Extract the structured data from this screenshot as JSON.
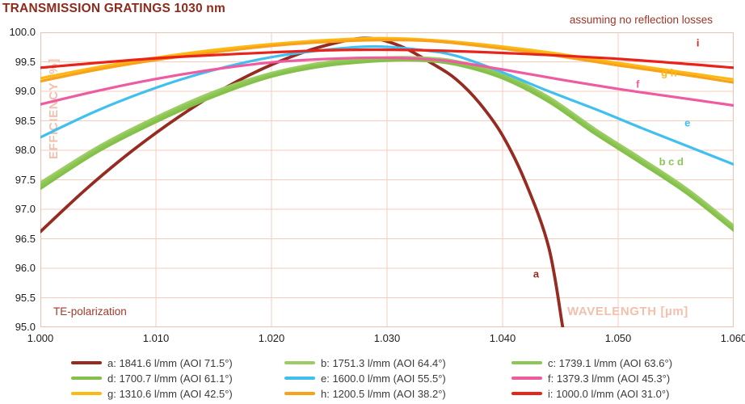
{
  "header": {
    "title": "TRANSMISSION GRATINGS 1030 nm"
  },
  "notes": {
    "top_right": "assuming no reflection losses",
    "bottom_left": "TE-polarization"
  },
  "colors": {
    "grid": "#f4cdbd",
    "plot_border": "#eec0ae",
    "tick_text": "#1d1d1b",
    "axis_label": "#f2c0ac",
    "title": "#8e2a1c",
    "note": "#9c3527",
    "legend_text": "#3a3a38"
  },
  "chart_data": {
    "type": "line",
    "title": "TRANSMISSION GRATINGS 1030 nm",
    "xlabel": "WAVELENGTH [µm]",
    "ylabel": "EFFICIENCY [%]",
    "xlim": [
      1.0,
      1.06
    ],
    "ylim": [
      95.0,
      100.0
    ],
    "x_tick_labels": [
      "1.000",
      "1.010",
      "1.020",
      "1.030",
      "1.040",
      "1.050",
      "1.060"
    ],
    "y_tick_labels": [
      "100.0",
      "99.5",
      "99.0",
      "98.5",
      "98.0",
      "97.5",
      "97.0",
      "96.5",
      "96.0",
      "95.5",
      "95.0"
    ],
    "x_grid_step": 0.01,
    "y_grid_step": 0.5,
    "grid": true,
    "legend_position": "bottom",
    "series": [
      {
        "id": "a",
        "label": "a: 1841.6 l/mm (AOI 71.5°)",
        "color": "#952b21",
        "width": 3.8,
        "points": [
          [
            1.0,
            96.62
          ],
          [
            1.004,
            97.35
          ],
          [
            1.008,
            98.0
          ],
          [
            1.012,
            98.57
          ],
          [
            1.016,
            99.06
          ],
          [
            1.02,
            99.45
          ],
          [
            1.024,
            99.74
          ],
          [
            1.028,
            99.9
          ],
          [
            1.031,
            99.78
          ],
          [
            1.034,
            99.46
          ],
          [
            1.036,
            99.2
          ],
          [
            1.038,
            98.8
          ],
          [
            1.04,
            98.25
          ],
          [
            1.042,
            97.45
          ],
          [
            1.044,
            96.35
          ],
          [
            1.0452,
            95.0
          ]
        ]
      },
      {
        "id": "b",
        "label": "b: 1751.3 l/mm (AOI 64.4°)",
        "color": "#9bcd64",
        "width": 3.2,
        "points": [
          [
            1.0,
            97.45
          ],
          [
            1.005,
            98.06
          ],
          [
            1.01,
            98.56
          ],
          [
            1.015,
            98.99
          ],
          [
            1.02,
            99.31
          ],
          [
            1.025,
            99.5
          ],
          [
            1.03,
            99.57
          ],
          [
            1.033,
            99.57
          ],
          [
            1.036,
            99.51
          ],
          [
            1.04,
            99.29
          ],
          [
            1.044,
            98.9
          ],
          [
            1.048,
            98.36
          ],
          [
            1.052,
            97.86
          ],
          [
            1.056,
            97.34
          ],
          [
            1.06,
            96.72
          ]
        ]
      },
      {
        "id": "c",
        "label": "c: 1739.1 l/mm (AOI 63.6°)",
        "color": "#8cc654",
        "width": 3.2,
        "points": [
          [
            1.0,
            97.4
          ],
          [
            1.005,
            98.02
          ],
          [
            1.01,
            98.52
          ],
          [
            1.015,
            98.95
          ],
          [
            1.02,
            99.28
          ],
          [
            1.025,
            99.47
          ],
          [
            1.03,
            99.55
          ],
          [
            1.033,
            99.55
          ],
          [
            1.036,
            99.48
          ],
          [
            1.04,
            99.26
          ],
          [
            1.044,
            98.86
          ],
          [
            1.048,
            98.32
          ],
          [
            1.052,
            97.82
          ],
          [
            1.056,
            97.3
          ],
          [
            1.06,
            96.68
          ]
        ]
      },
      {
        "id": "d",
        "label": "d: 1700.7 l/mm (AOI 61.1°)",
        "color": "#84c04a",
        "width": 3.2,
        "points": [
          [
            1.0,
            97.35
          ],
          [
            1.005,
            97.98
          ],
          [
            1.01,
            98.48
          ],
          [
            1.015,
            98.91
          ],
          [
            1.02,
            99.25
          ],
          [
            1.025,
            99.44
          ],
          [
            1.03,
            99.52
          ],
          [
            1.033,
            99.52
          ],
          [
            1.036,
            99.45
          ],
          [
            1.04,
            99.22
          ],
          [
            1.044,
            98.82
          ],
          [
            1.048,
            98.28
          ],
          [
            1.052,
            97.78
          ],
          [
            1.056,
            97.26
          ],
          [
            1.06,
            96.64
          ]
        ]
      },
      {
        "id": "e",
        "label": "e: 1600.0 l/mm (AOI 55.5°)",
        "color": "#41c0f0",
        "width": 3.2,
        "points": [
          [
            1.0,
            98.22
          ],
          [
            1.005,
            98.68
          ],
          [
            1.01,
            99.06
          ],
          [
            1.015,
            99.36
          ],
          [
            1.02,
            99.58
          ],
          [
            1.025,
            99.71
          ],
          [
            1.029,
            99.76
          ],
          [
            1.033,
            99.7
          ],
          [
            1.036,
            99.6
          ],
          [
            1.04,
            99.32
          ],
          [
            1.044,
            99.0
          ],
          [
            1.048,
            98.7
          ],
          [
            1.052,
            98.38
          ],
          [
            1.056,
            98.07
          ],
          [
            1.06,
            97.76
          ]
        ]
      },
      {
        "id": "f",
        "label": "f: 1379.3 l/mm (AOI 45.3°)",
        "color": "#ee5ba0",
        "width": 3.2,
        "points": [
          [
            1.0,
            98.78
          ],
          [
            1.005,
            99.01
          ],
          [
            1.01,
            99.21
          ],
          [
            1.015,
            99.37
          ],
          [
            1.02,
            99.49
          ],
          [
            1.025,
            99.55
          ],
          [
            1.03,
            99.57
          ],
          [
            1.035,
            99.52
          ],
          [
            1.04,
            99.37
          ],
          [
            1.045,
            99.2
          ],
          [
            1.05,
            99.04
          ],
          [
            1.055,
            98.9
          ],
          [
            1.06,
            98.76
          ]
        ]
      },
      {
        "id": "g",
        "label": "g: 1310.6 l/mm (AOI 42.5°)",
        "color": "#fdb913",
        "width": 3.2,
        "points": [
          [
            1.0,
            99.22
          ],
          [
            1.005,
            99.41
          ],
          [
            1.01,
            99.57
          ],
          [
            1.015,
            99.7
          ],
          [
            1.02,
            99.8
          ],
          [
            1.025,
            99.87
          ],
          [
            1.029,
            99.9
          ],
          [
            1.033,
            99.88
          ],
          [
            1.038,
            99.8
          ],
          [
            1.044,
            99.66
          ],
          [
            1.05,
            99.48
          ],
          [
            1.055,
            99.34
          ],
          [
            1.06,
            99.2
          ]
        ]
      },
      {
        "id": "h",
        "label": "h: 1200.5 l/mm (AOI 38.2°)",
        "color": "#f8a21c",
        "width": 3.2,
        "points": [
          [
            1.0,
            99.17
          ],
          [
            1.005,
            99.37
          ],
          [
            1.01,
            99.53
          ],
          [
            1.015,
            99.66
          ],
          [
            1.02,
            99.77
          ],
          [
            1.025,
            99.84
          ],
          [
            1.03,
            99.87
          ],
          [
            1.034,
            99.85
          ],
          [
            1.038,
            99.77
          ],
          [
            1.044,
            99.62
          ],
          [
            1.05,
            99.44
          ],
          [
            1.055,
            99.3
          ],
          [
            1.06,
            99.15
          ]
        ]
      },
      {
        "id": "i",
        "label": "i: 1000.0 l/mm (AOI 31.0°)",
        "color": "#e8231c",
        "width": 3.2,
        "points": [
          [
            1.0,
            99.4
          ],
          [
            1.01,
            99.56
          ],
          [
            1.02,
            99.66
          ],
          [
            1.026,
            99.7
          ],
          [
            1.032,
            99.7
          ],
          [
            1.04,
            99.65
          ],
          [
            1.05,
            99.55
          ],
          [
            1.06,
            99.4
          ]
        ]
      }
    ],
    "curve_labels": [
      {
        "text": "a",
        "x": 1.0429,
        "y": 95.9,
        "color": "#952b21"
      },
      {
        "text": "b c d",
        "x": 1.0546,
        "y": 97.81,
        "color": "#8cc654"
      },
      {
        "text": "e",
        "x": 1.056,
        "y": 98.47,
        "color": "#41c0f0"
      },
      {
        "text": "f",
        "x": 1.0517,
        "y": 99.12,
        "color": "#ee5ba0"
      },
      {
        "text": "g h",
        "x": 1.0544,
        "y": 99.32,
        "color": "#fdb913"
      },
      {
        "text": "i",
        "x": 1.0569,
        "y": 99.82,
        "color": "#e8231c"
      }
    ]
  }
}
